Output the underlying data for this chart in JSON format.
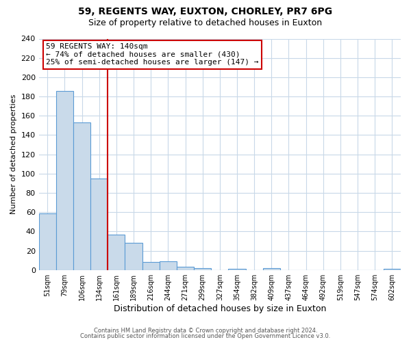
{
  "title": "59, REGENTS WAY, EUXTON, CHORLEY, PR7 6PG",
  "subtitle": "Size of property relative to detached houses in Euxton",
  "xlabel": "Distribution of detached houses by size in Euxton",
  "ylabel": "Number of detached properties",
  "bin_labels": [
    "51sqm",
    "79sqm",
    "106sqm",
    "134sqm",
    "161sqm",
    "189sqm",
    "216sqm",
    "244sqm",
    "271sqm",
    "299sqm",
    "327sqm",
    "354sqm",
    "382sqm",
    "409sqm",
    "437sqm",
    "464sqm",
    "492sqm",
    "519sqm",
    "547sqm",
    "574sqm",
    "602sqm"
  ],
  "bin_values": [
    59,
    186,
    153,
    95,
    37,
    28,
    8,
    9,
    3,
    2,
    0,
    1,
    0,
    2,
    0,
    0,
    0,
    0,
    0,
    0,
    1
  ],
  "bar_color": "#c9daea",
  "bar_edge_color": "#5b9bd5",
  "red_line_index": 3,
  "annotation_title": "59 REGENTS WAY: 140sqm",
  "annotation_line1": "← 74% of detached houses are smaller (430)",
  "annotation_line2": "25% of semi-detached houses are larger (147) →",
  "annotation_box_edge_color": "#cc0000",
  "red_line_color": "#cc0000",
  "ylim": [
    0,
    240
  ],
  "yticks": [
    0,
    20,
    40,
    60,
    80,
    100,
    120,
    140,
    160,
    180,
    200,
    220,
    240
  ],
  "footer1": "Contains HM Land Registry data © Crown copyright and database right 2024.",
  "footer2": "Contains public sector information licensed under the Open Government Licence v3.0.",
  "bg_color": "#ffffff",
  "grid_color": "#c8d8e8",
  "title_fontsize": 10,
  "subtitle_fontsize": 9,
  "xlabel_fontsize": 9,
  "ylabel_fontsize": 8,
  "tick_fontsize": 7,
  "footer_fontsize": 6,
  "annotation_fontsize": 8
}
